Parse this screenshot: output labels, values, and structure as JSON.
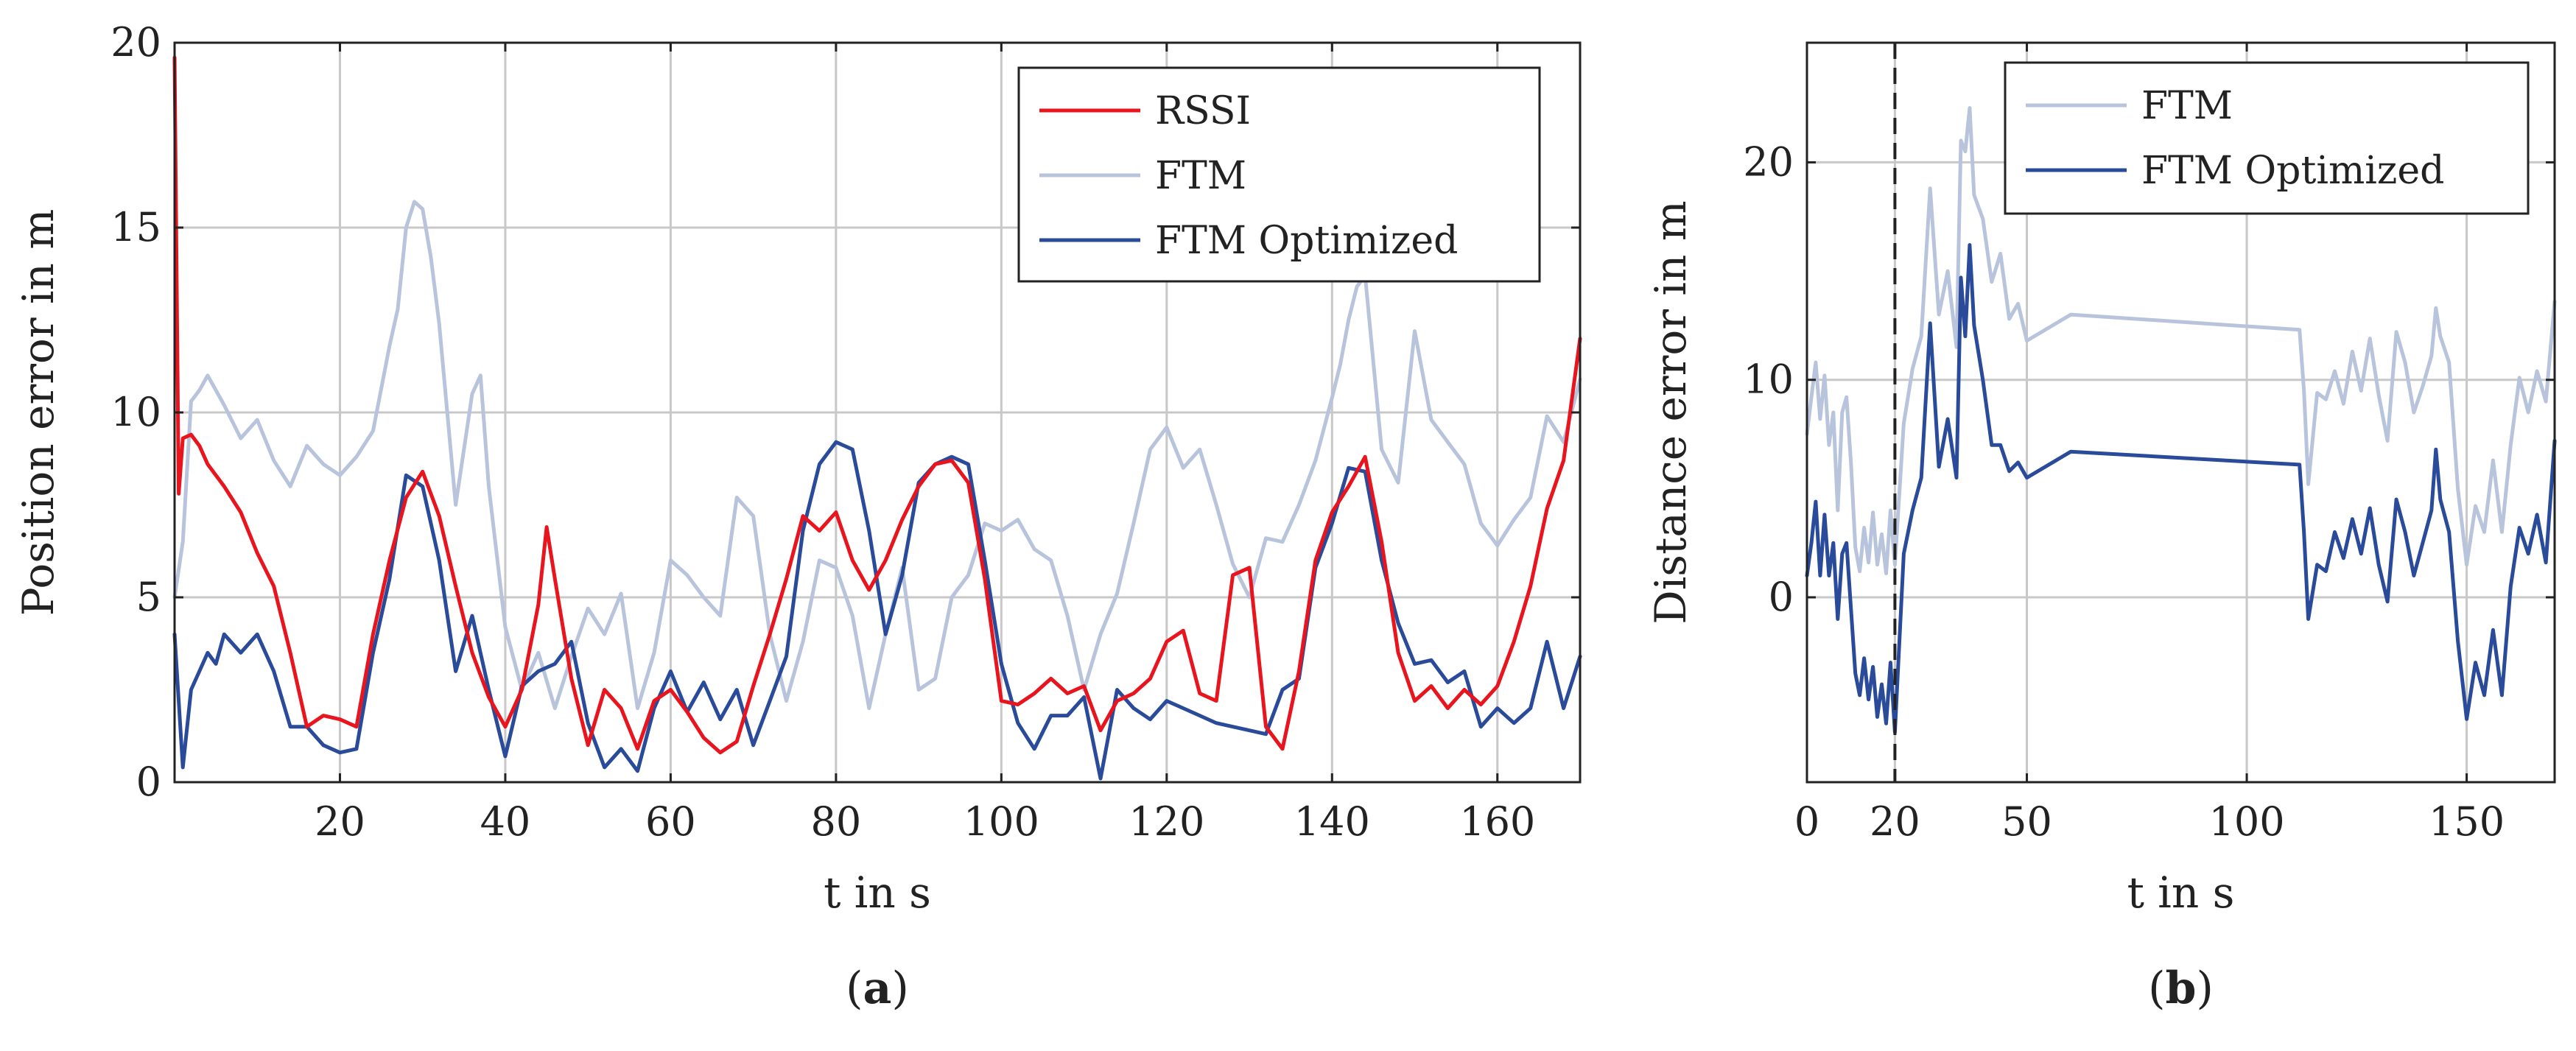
{
  "colors": {
    "rssi": "#e8141e",
    "ftm": "#b8c4dc",
    "ftm_optimized": "#2a4a9a"
  },
  "chart_data": [
    {
      "id": "a",
      "panel_label": "a",
      "type": "line",
      "xlabel": "t in s",
      "ylabel": "Position error in m",
      "xlim": [
        0,
        170
      ],
      "ylim": [
        0,
        20
      ],
      "xticks": [
        20,
        40,
        60,
        80,
        100,
        120,
        140,
        160
      ],
      "yticks": [
        0,
        5,
        10,
        15,
        20
      ],
      "grid": true,
      "legend_position": "top-right",
      "series": [
        {
          "name": "RSSI",
          "color": "#e8141e",
          "x": [
            0,
            0.5,
            1,
            2,
            3,
            4,
            6,
            8,
            10,
            12,
            14,
            16,
            18,
            20,
            22,
            24,
            26,
            28,
            30,
            32,
            34,
            36,
            38,
            40,
            42,
            44,
            45,
            46,
            48,
            50,
            52,
            54,
            56,
            58,
            60,
            62,
            64,
            66,
            68,
            70,
            72,
            74,
            76,
            78,
            80,
            82,
            84,
            86,
            88,
            90,
            92,
            94,
            96,
            98,
            100,
            102,
            104,
            106,
            108,
            110,
            112,
            114,
            116,
            118,
            120,
            122,
            124,
            126,
            128,
            130,
            132,
            134,
            136,
            138,
            140,
            142,
            144,
            146,
            148,
            150,
            152,
            154,
            156,
            158,
            160,
            162,
            164,
            166,
            168,
            170
          ],
          "y": [
            19.6,
            7.8,
            9.3,
            9.4,
            9.1,
            8.6,
            8.0,
            7.3,
            6.2,
            5.3,
            3.5,
            1.5,
            1.8,
            1.7,
            1.5,
            4.0,
            6.0,
            7.7,
            8.4,
            7.2,
            5.3,
            3.5,
            2.3,
            1.5,
            2.5,
            4.8,
            6.9,
            5.5,
            2.8,
            1.0,
            2.5,
            2.0,
            0.9,
            2.2,
            2.5,
            1.9,
            1.2,
            0.8,
            1.1,
            2.6,
            4.0,
            5.5,
            7.2,
            6.8,
            7.3,
            6.0,
            5.2,
            6.0,
            7.1,
            8.0,
            8.6,
            8.7,
            8.1,
            5.5,
            2.2,
            2.1,
            2.4,
            2.8,
            2.4,
            2.6,
            1.4,
            2.2,
            2.4,
            2.8,
            3.8,
            4.1,
            2.4,
            2.2,
            5.6,
            5.8,
            1.5,
            0.9,
            3.0,
            6.0,
            7.3,
            8.0,
            8.8,
            6.5,
            3.5,
            2.2,
            2.6,
            2.0,
            2.5,
            2.1,
            2.6,
            3.8,
            5.3,
            7.4,
            8.7,
            12.0
          ]
        },
        {
          "name": "FTM",
          "color": "#b8c4dc",
          "x": [
            0,
            1,
            2,
            3,
            4,
            6,
            8,
            10,
            12,
            14,
            16,
            18,
            20,
            22,
            24,
            26,
            27,
            28,
            29,
            30,
            31,
            32,
            34,
            36,
            37,
            38,
            40,
            42,
            44,
            46,
            48,
            50,
            52,
            54,
            56,
            58,
            60,
            62,
            64,
            66,
            68,
            70,
            72,
            74,
            76,
            78,
            80,
            82,
            84,
            86,
            88,
            90,
            92,
            94,
            96,
            98,
            100,
            102,
            104,
            106,
            108,
            110,
            112,
            114,
            116,
            118,
            120,
            122,
            124,
            126,
            128,
            130,
            132,
            134,
            136,
            138,
            140,
            141,
            142,
            143,
            144,
            146,
            148,
            150,
            152,
            154,
            156,
            158,
            160,
            162,
            164,
            166,
            168,
            170
          ],
          "y": [
            5.0,
            6.5,
            10.3,
            10.6,
            11.0,
            10.2,
            9.3,
            9.8,
            8.7,
            8.0,
            9.1,
            8.6,
            8.3,
            8.8,
            9.5,
            11.8,
            12.8,
            15.0,
            15.7,
            15.5,
            14.2,
            12.4,
            7.5,
            10.5,
            11.0,
            8.0,
            4.2,
            2.5,
            3.5,
            2.0,
            3.4,
            4.7,
            4.0,
            5.1,
            2.0,
            3.5,
            6.0,
            5.6,
            5.0,
            4.5,
            7.7,
            7.2,
            4.0,
            2.2,
            3.8,
            6.0,
            5.8,
            4.5,
            2.0,
            4.0,
            5.8,
            2.5,
            2.8,
            5.0,
            5.6,
            7.0,
            6.8,
            7.1,
            6.3,
            6.0,
            4.5,
            2.5,
            4.0,
            5.1,
            7.0,
            9.0,
            9.6,
            8.5,
            9.0,
            7.5,
            5.9,
            5.0,
            6.6,
            6.5,
            7.5,
            8.7,
            10.4,
            11.3,
            12.5,
            13.4,
            13.7,
            9.0,
            8.1,
            12.2,
            9.8,
            9.2,
            8.6,
            7.0,
            6.4,
            7.1,
            7.7,
            9.9,
            9.2,
            10.9
          ]
        },
        {
          "name": "FTM Optimized",
          "color": "#2a4a9a",
          "x": [
            0,
            1,
            2,
            3,
            4,
            5,
            6,
            8,
            10,
            12,
            14,
            16,
            18,
            20,
            22,
            24,
            26,
            28,
            30,
            32,
            34,
            36,
            38,
            40,
            42,
            44,
            46,
            48,
            50,
            52,
            54,
            56,
            58,
            60,
            62,
            64,
            66,
            68,
            70,
            72,
            74,
            76,
            78,
            80,
            82,
            84,
            86,
            88,
            90,
            92,
            94,
            96,
            98,
            100,
            102,
            104,
            106,
            108,
            110,
            112,
            114,
            116,
            118,
            120,
            122,
            124,
            126,
            128,
            130,
            132,
            134,
            136,
            138,
            140,
            142,
            144,
            146,
            148,
            150,
            152,
            154,
            156,
            158,
            160,
            162,
            164,
            166,
            168,
            170
          ],
          "y": [
            4.0,
            0.4,
            2.5,
            3.0,
            3.5,
            3.2,
            4.0,
            3.5,
            4.0,
            3.0,
            1.5,
            1.5,
            1.0,
            0.8,
            0.9,
            3.5,
            5.5,
            8.3,
            8.0,
            6.0,
            3.0,
            4.5,
            2.5,
            0.7,
            2.6,
            3.0,
            3.2,
            3.8,
            1.6,
            0.4,
            0.9,
            0.3,
            2.0,
            3.0,
            1.9,
            2.7,
            1.7,
            2.5,
            1.0,
            2.2,
            3.4,
            6.8,
            8.6,
            9.2,
            9.0,
            6.8,
            4.0,
            5.6,
            8.1,
            8.6,
            8.8,
            8.6,
            6.0,
            3.2,
            1.6,
            0.9,
            1.8,
            1.8,
            2.3,
            0.1,
            2.5,
            2.0,
            1.7,
            2.2,
            2.0,
            1.8,
            1.6,
            1.5,
            1.4,
            1.3,
            2.5,
            2.8,
            5.8,
            7.0,
            8.5,
            8.4,
            6.0,
            4.3,
            3.2,
            3.3,
            2.7,
            3.0,
            1.5,
            2.0,
            1.6,
            2.0,
            3.8,
            2.0,
            3.4
          ]
        }
      ]
    },
    {
      "id": "b",
      "panel_label": "b",
      "type": "line",
      "xlabel": "t in s",
      "ylabel": "Distance error in m",
      "xlim": [
        0,
        170
      ],
      "ylim": [
        -8.5,
        25.5
      ],
      "xticks": [
        0,
        20,
        50,
        100,
        150
      ],
      "yticks": [
        0,
        10,
        20
      ],
      "grid": true,
      "marker_line_x": 20,
      "legend_position": "top-right",
      "series": [
        {
          "name": "FTM",
          "color": "#b8c4dc",
          "x": [
            0,
            1,
            2,
            3,
            4,
            5,
            6,
            7,
            8,
            9,
            10,
            11,
            12,
            13,
            14,
            15,
            16,
            17,
            18,
            19,
            20,
            22,
            24,
            26,
            28,
            30,
            32,
            34,
            35,
            36,
            37,
            38,
            40,
            42,
            44,
            46,
            48,
            50,
            60,
            112,
            113,
            114,
            116,
            118,
            120,
            122,
            124,
            126,
            128,
            130,
            132,
            134,
            136,
            138,
            140,
            142,
            143,
            144,
            146,
            148,
            150,
            152,
            154,
            156,
            158,
            160,
            162,
            164,
            166,
            168,
            170
          ],
          "y": [
            7.5,
            9.2,
            10.8,
            8.2,
            10.2,
            7.0,
            8.5,
            4.0,
            8.5,
            9.2,
            6.2,
            2.3,
            1.2,
            3.2,
            1.6,
            3.9,
            1.5,
            2.9,
            1.1,
            4.0,
            1.5,
            8.0,
            10.5,
            12.0,
            18.8,
            13.0,
            15.0,
            11.5,
            21.0,
            20.5,
            22.5,
            18.5,
            17.4,
            14.5,
            15.8,
            12.8,
            13.5,
            11.8,
            13.0,
            12.3,
            9.5,
            5.2,
            9.4,
            9.1,
            10.4,
            8.9,
            11.3,
            9.5,
            11.9,
            9.3,
            7.2,
            12.2,
            10.8,
            8.5,
            9.7,
            11.1,
            13.3,
            12.0,
            10.8,
            5.0,
            1.5,
            4.2,
            3.0,
            6.3,
            3.0,
            7.0,
            10.1,
            8.5,
            10.4,
            9.0,
            13.6
          ]
        },
        {
          "name": "FTM Optimized",
          "color": "#2a4a9a",
          "x": [
            0,
            1,
            2,
            3,
            4,
            5,
            6,
            7,
            8,
            9,
            10,
            11,
            12,
            13,
            14,
            15,
            16,
            17,
            18,
            19,
            20,
            22,
            24,
            26,
            28,
            30,
            32,
            34,
            35,
            36,
            37,
            38,
            40,
            42,
            44,
            46,
            48,
            50,
            60,
            112,
            113,
            114,
            116,
            118,
            120,
            122,
            124,
            126,
            128,
            130,
            132,
            134,
            136,
            138,
            140,
            142,
            143,
            144,
            146,
            148,
            150,
            152,
            154,
            156,
            158,
            160,
            162,
            164,
            166,
            168,
            170
          ],
          "y": [
            1.0,
            2.5,
            4.4,
            1.0,
            3.8,
            1.0,
            2.5,
            -1.0,
            2.0,
            2.5,
            -0.5,
            -3.5,
            -4.5,
            -2.8,
            -4.7,
            -3.2,
            -5.5,
            -4.0,
            -5.8,
            -3.0,
            -6.2,
            2.0,
            4.0,
            5.5,
            12.6,
            6.0,
            8.2,
            5.5,
            14.7,
            12.0,
            16.2,
            12.5,
            10.0,
            7.0,
            7.0,
            5.8,
            6.2,
            5.5,
            6.7,
            6.1,
            3.0,
            -1.0,
            1.5,
            1.2,
            3.0,
            1.8,
            3.6,
            2.0,
            4.1,
            1.5,
            -0.2,
            4.5,
            3.0,
            1.0,
            2.5,
            4.0,
            6.8,
            4.5,
            3.0,
            -2.0,
            -5.6,
            -3.0,
            -4.5,
            -1.5,
            -4.5,
            0.5,
            3.2,
            2.0,
            3.8,
            1.6,
            7.2
          ]
        }
      ]
    }
  ]
}
